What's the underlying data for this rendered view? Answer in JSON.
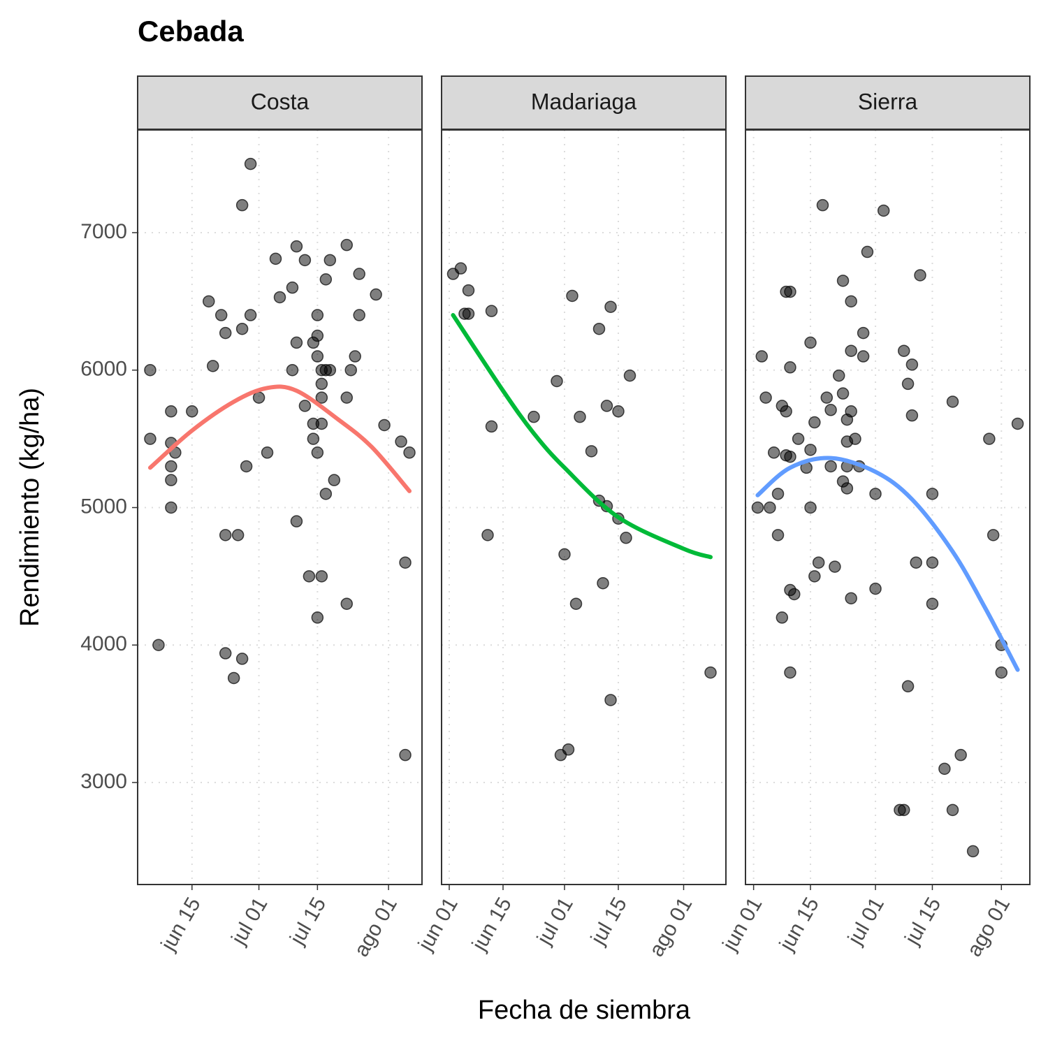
{
  "chart_data": {
    "type": "scatter",
    "title": "Cebada",
    "x_label": "Fecha de siembra",
    "y_label": "Rendimiento (kg/ha)",
    "ylim": [
      2258,
      7747
    ],
    "yticks": [
      3000,
      4000,
      5000,
      6000,
      7000
    ],
    "grid": true,
    "point_color": "#000000",
    "panels": [
      {
        "name": "Costa",
        "xlim": [
          "06-02",
          "08-09"
        ],
        "xticks": [
          {
            "value": "06-15",
            "label": "jun 15"
          },
          {
            "value": "07-01",
            "label": "jul 01"
          },
          {
            "value": "07-15",
            "label": "jul 15"
          },
          {
            "value": "08-01",
            "label": "ago 01"
          }
        ],
        "x": [
          "06-05",
          "06-05",
          "06-07",
          "06-10",
          "06-10",
          "06-10",
          "06-10",
          "06-10",
          "06-11",
          "06-15",
          "06-19",
          "06-20",
          "06-22",
          "06-23",
          "06-23",
          "06-23",
          "06-25",
          "06-26",
          "06-27",
          "06-27",
          "06-27",
          "06-28",
          "06-29",
          "06-29",
          "07-01",
          "07-03",
          "07-05",
          "07-06",
          "07-09",
          "07-09",
          "07-10",
          "07-10",
          "07-10",
          "07-12",
          "07-12",
          "07-13",
          "07-14",
          "07-14",
          "07-14",
          "07-15",
          "07-15",
          "07-15",
          "07-15",
          "07-15",
          "07-16",
          "07-16",
          "07-16",
          "07-16",
          "07-16",
          "07-17",
          "07-17",
          "07-17",
          "07-18",
          "07-18",
          "07-19",
          "07-22",
          "07-22",
          "07-22",
          "07-23",
          "07-24",
          "07-25",
          "07-25",
          "07-29",
          "07-31",
          "08-04",
          "08-05",
          "08-05",
          "08-06"
        ],
        "y": [
          6000,
          5500,
          4000,
          5700,
          5470,
          5300,
          5200,
          5000,
          5400,
          5700,
          6500,
          6030,
          6400,
          6270,
          4800,
          3940,
          3760,
          4800,
          7200,
          6300,
          3900,
          5300,
          7500,
          6400,
          5800,
          5400,
          6810,
          6530,
          6600,
          6000,
          6900,
          6200,
          4900,
          6800,
          5740,
          4500,
          6200,
          5610,
          5500,
          6400,
          6250,
          6100,
          5400,
          4200,
          6000,
          5900,
          5800,
          5610,
          4500,
          6660,
          6000,
          5100,
          6800,
          6000,
          5200,
          6910,
          5800,
          4300,
          6000,
          6100,
          6700,
          6400,
          6550,
          5600,
          5480,
          4600,
          3200,
          5400
        ],
        "fit": {
          "color": "#f8766d",
          "x": [
            "06-05",
            "06-15",
            "06-25",
            "07-03",
            "07-10",
            "07-20",
            "07-28",
            "08-06"
          ],
          "y": [
            5290,
            5560,
            5770,
            5870,
            5850,
            5640,
            5440,
            5120
          ]
        }
      },
      {
        "name": "Madariaga",
        "xlim": [
          "05-30",
          "08-12"
        ],
        "xticks": [
          {
            "value": "06-01",
            "label": "jun 01"
          },
          {
            "value": "06-15",
            "label": "jun 15"
          },
          {
            "value": "07-01",
            "label": "jul 01"
          },
          {
            "value": "07-15",
            "label": "jul 15"
          },
          {
            "value": "08-01",
            "label": "ago 01"
          }
        ],
        "x": [
          "06-02",
          "06-04",
          "06-06",
          "06-05",
          "06-06",
          "06-12",
          "06-11",
          "06-12",
          "06-23",
          "06-29",
          "06-30",
          "07-01",
          "07-02",
          "07-03",
          "07-04",
          "07-05",
          "07-08",
          "07-10",
          "07-10",
          "07-11",
          "07-12",
          "07-12",
          "07-13",
          "07-13",
          "07-15",
          "07-15",
          "07-17",
          "07-18",
          "08-08"
        ],
        "y": [
          6700,
          6740,
          6580,
          6410,
          6410,
          6430,
          4800,
          5590,
          5660,
          5920,
          3200,
          4660,
          3240,
          6540,
          4300,
          5660,
          5410,
          6300,
          5050,
          4450,
          5740,
          5010,
          6460,
          3600,
          5700,
          4920,
          4780,
          5960,
          3800
        ],
        "fit": {
          "color": "#00ba38",
          "x": [
            "06-02",
            "06-15",
            "06-23",
            "07-01",
            "07-15",
            "08-01",
            "08-08"
          ],
          "y": [
            6400,
            5850,
            5540,
            5290,
            4930,
            4700,
            4640
          ]
        }
      },
      {
        "name": "Sierra",
        "xlim": [
          "05-30",
          "08-08"
        ],
        "xticks": [
          {
            "value": "06-01",
            "label": "jun 01"
          },
          {
            "value": "06-15",
            "label": "jun 15"
          },
          {
            "value": "07-01",
            "label": "jul 01"
          },
          {
            "value": "07-15",
            "label": "jul 15"
          },
          {
            "value": "08-01",
            "label": "ago 01"
          }
        ],
        "x": [
          "06-02",
          "06-03",
          "06-04",
          "06-05",
          "06-06",
          "06-07",
          "06-07",
          "06-08",
          "06-08",
          "06-09",
          "06-09",
          "06-09",
          "06-10",
          "06-10",
          "06-10",
          "06-10",
          "06-10",
          "06-11",
          "06-12",
          "06-14",
          "06-15",
          "06-15",
          "06-15",
          "06-16",
          "06-16",
          "06-17",
          "06-18",
          "06-19",
          "06-20",
          "06-20",
          "06-21",
          "06-22",
          "06-23",
          "06-23",
          "06-23",
          "06-24",
          "06-24",
          "06-24",
          "06-24",
          "06-25",
          "06-25",
          "06-25",
          "06-25",
          "06-26",
          "06-27",
          "06-28",
          "06-28",
          "06-29",
          "07-01",
          "07-01",
          "07-03",
          "07-07",
          "07-08",
          "07-08",
          "07-10",
          "07-09",
          "07-10",
          "07-09",
          "07-11",
          "07-12",
          "07-15",
          "07-15",
          "07-15",
          "07-18",
          "07-20",
          "07-20",
          "07-22",
          "07-25",
          "07-29",
          "07-30",
          "08-01",
          "08-01",
          "08-05"
        ],
        "y": [
          5000,
          6100,
          5800,
          5000,
          5400,
          5100,
          4800,
          5740,
          4200,
          5700,
          5380,
          6570,
          6570,
          6020,
          5370,
          4400,
          3800,
          4370,
          5500,
          5290,
          5420,
          5000,
          6200,
          5620,
          4500,
          4600,
          7200,
          5800,
          5710,
          5300,
          4570,
          5960,
          6650,
          5830,
          5190,
          5480,
          5640,
          5300,
          5140,
          6500,
          6140,
          5700,
          4340,
          5500,
          5300,
          6100,
          6270,
          6860,
          5100,
          4410,
          7160,
          2800,
          2800,
          6140,
          6040,
          5900,
          5670,
          3700,
          4600,
          6690,
          5100,
          4600,
          4300,
          3100,
          5770,
          2800,
          3200,
          2500,
          5500,
          4800,
          4000,
          3800,
          5610
        ],
        "fit": {
          "color": "#619cff",
          "x": [
            "06-02",
            "06-10",
            "06-20",
            "07-01",
            "07-10",
            "07-20",
            "07-28",
            "08-05"
          ],
          "y": [
            5090,
            5290,
            5360,
            5260,
            5060,
            4680,
            4270,
            3820
          ]
        }
      }
    ]
  }
}
